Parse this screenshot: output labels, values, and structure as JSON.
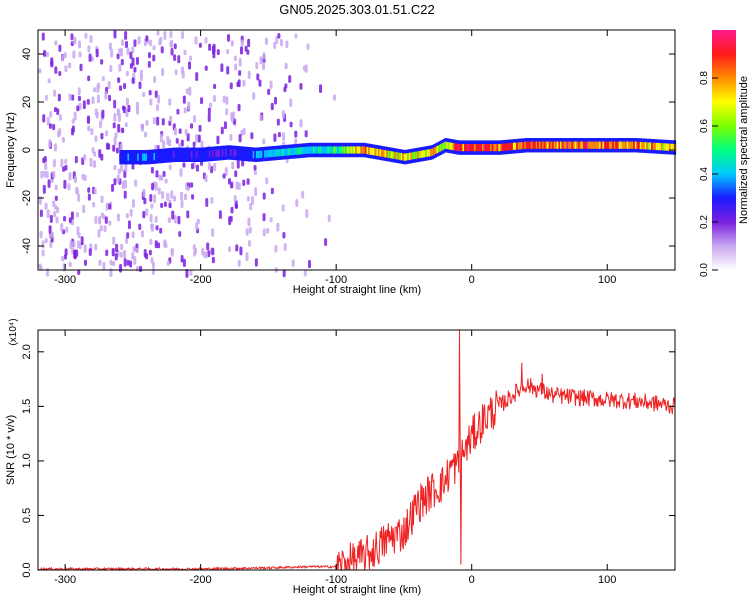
{
  "title": "GN05.2025.303.01.51.C22",
  "chart_data": [
    {
      "type": "heatmap",
      "xlabel": "Height of straight line (km)",
      "ylabel": "Frequency (Hz)",
      "xlim": [
        -320,
        150
      ],
      "ylim": [
        -50,
        50
      ],
      "xticks": [
        -300,
        -200,
        -100,
        0,
        100
      ],
      "yticks": [
        -40,
        -20,
        0,
        20,
        40
      ],
      "colorbar": {
        "label": "Normalized spectral amplitude",
        "range": [
          0,
          1
        ],
        "ticks": [
          "0.0",
          "0.2",
          "0.4",
          "0.6",
          "0.8"
        ],
        "colormap": [
          "#ffffff",
          "#c9a8f0",
          "#7a1fe0",
          "#1a1aff",
          "#00c8ff",
          "#00ff7f",
          "#7cff00",
          "#ffff00",
          "#ff8c00",
          "#ff1a1a",
          "#ff1a8c"
        ]
      },
      "ridge": {
        "x": [
          -260,
          -240,
          -220,
          -200,
          -180,
          -160,
          -140,
          -120,
          -100,
          -80,
          -60,
          -50,
          -40,
          -30,
          -20,
          -10,
          0,
          20,
          40,
          60,
          80,
          100,
          120,
          150
        ],
        "y_center_hz": [
          -3,
          -3,
          -2,
          -2,
          -1,
          -2,
          -1,
          0,
          0,
          0,
          -2,
          -3,
          -2,
          -1,
          2,
          1,
          1,
          1,
          2,
          2,
          2,
          2,
          2,
          1
        ],
        "amplitude": [
          0.35,
          0.35,
          0.3,
          0.3,
          0.25,
          0.4,
          0.45,
          0.45,
          0.55,
          0.8,
          0.75,
          0.7,
          0.7,
          0.75,
          0.7,
          0.9,
          0.95,
          0.9,
          0.85,
          0.9,
          0.9,
          0.85,
          0.8,
          0.75
        ]
      },
      "noise_region_x": [
        -320,
        -100
      ]
    },
    {
      "type": "line",
      "xlabel": "Height of straight line (km)",
      "ylabel": "SNR (10 * v/v)",
      "yscale_label": "(x10⁴)",
      "xlim": [
        -320,
        150
      ],
      "ylim": [
        0,
        2.2
      ],
      "xticks": [
        -300,
        -200,
        -100,
        0,
        100
      ],
      "yticks": [
        "0.0",
        "0.5",
        "1.0",
        "1.5",
        "2.0"
      ],
      "color": "#ee2222",
      "series": [
        {
          "x": [
            -320,
            -250,
            -200,
            -150,
            -120,
            -100,
            -90,
            -80,
            -70,
            -60,
            -50,
            -40,
            -30,
            -20,
            -15,
            -10,
            -5,
            0,
            10,
            20,
            30,
            40,
            50,
            60,
            80,
            100,
            120,
            140,
            150
          ],
          "values": [
            0.01,
            0.01,
            0.01,
            0.02,
            0.03,
            0.03,
            0.07,
            0.12,
            0.2,
            0.3,
            0.35,
            0.6,
            0.72,
            0.8,
            0.95,
            0.95,
            1.1,
            1.22,
            1.4,
            1.5,
            1.6,
            1.7,
            1.65,
            1.6,
            1.58,
            1.56,
            1.55,
            1.52,
            1.5
          ]
        }
      ],
      "spikes": [
        {
          "x": -9,
          "y": 2.2
        },
        {
          "x": -8,
          "y": 0.05
        },
        {
          "x": 37,
          "y": 1.9
        },
        {
          "x": 52,
          "y": 1.8
        }
      ]
    }
  ]
}
